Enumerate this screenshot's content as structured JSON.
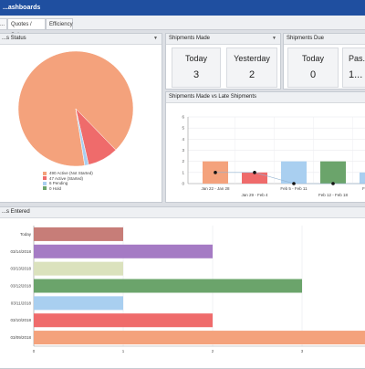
{
  "window": {
    "title": "...ashboards"
  },
  "tabs": [
    {
      "label": "..."
    },
    {
      "label": "Quotes / Sales"
    },
    {
      "label": "Efficiency"
    }
  ],
  "panels": {
    "status": {
      "title": "...s Status"
    },
    "shipments_made": {
      "title": "Shipments Made",
      "cards": [
        {
          "label": "Today",
          "value": "3"
        },
        {
          "label": "Yesterday",
          "value": "2"
        }
      ]
    },
    "shipments_due": {
      "title": "Shipments Due",
      "cards": [
        {
          "label": "Today",
          "value": "0"
        },
        {
          "label": "Pas...",
          "value": "1..."
        }
      ]
    },
    "made_vs_late": {
      "title": "Shipments Made vs Late Shipments"
    },
    "entered": {
      "title": "...s Entered"
    }
  },
  "colors": {
    "orange": "#f4a27c",
    "red": "#ef6b6b",
    "blue": "#a9cff0",
    "green": "#6ba46b",
    "purple": "#a57bc4",
    "olive": "#dbe2bd",
    "rose": "#c77d78"
  },
  "chart_data": [
    {
      "type": "pie",
      "legend_position": "bottom",
      "series": [
        {
          "label": "490 Active (Not Started)",
          "value": 490,
          "color": "#f4a27c"
        },
        {
          "label": "47 Active (Started)",
          "value": 47,
          "color": "#ef6b6b"
        },
        {
          "label": "6 Pending",
          "value": 6,
          "color": "#a9cff0"
        },
        {
          "label": "0 Hold",
          "value": 0,
          "color": "#6ba46b"
        }
      ]
    },
    {
      "type": "bar",
      "categories": [
        "Jan 22 - Jan 28",
        "Jan 29 - Feb 4",
        "Feb 5 - Feb 11",
        "Feb 12 - Feb 18",
        "Feb 19 - ..."
      ],
      "category_label_rows": [
        0,
        1,
        0,
        1,
        0
      ],
      "series": [
        {
          "kind": "bar",
          "values": [
            2,
            1,
            2,
            2,
            1
          ],
          "colors": [
            "#f4a27c",
            "#ef6b6b",
            "#a9cff0",
            "#6ba46b",
            "#a9cff0"
          ]
        },
        {
          "kind": "line",
          "values": [
            1,
            1,
            0,
            0,
            0
          ],
          "color": "#111111"
        }
      ],
      "ylim": [
        0,
        6
      ],
      "yticks": [
        "0",
        "1",
        "2",
        "3",
        "4",
        "5",
        "6"
      ],
      "grid": true
    },
    {
      "type": "bar",
      "orientation": "horizontal",
      "categories": [
        "Today",
        "03/14/2018",
        "03/13/2018",
        "03/12/2018",
        "03/11/2018",
        "03/10/2018",
        "03/09/2018"
      ],
      "values": [
        1,
        2,
        1,
        3,
        1,
        2,
        4
      ],
      "colors": [
        "#c77d78",
        "#a57bc4",
        "#dbe2bd",
        "#6ba46b",
        "#a9cff0",
        "#ef6b6b",
        "#f4a27c"
      ],
      "xlim": [
        0,
        4
      ],
      "xticks": [
        "0",
        "1",
        "2",
        "3"
      ],
      "grid": true
    }
  ]
}
